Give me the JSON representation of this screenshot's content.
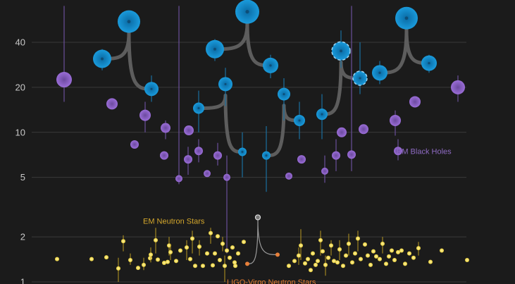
{
  "chart_data": {
    "type": "scatter",
    "scale": "log",
    "ylim": [
      1,
      70
    ],
    "yticks": [
      1,
      2,
      5,
      10,
      20,
      40
    ],
    "grid": true,
    "colors": {
      "ligo_bh": "#1a9bdc",
      "em_bh": "#9a6dd7",
      "em_ns": "#e8cf3a",
      "ligo_ns": "#e8803a",
      "merger_arc": "#5d5d5d",
      "grid": "#3a3a3a"
    },
    "annotations": [
      {
        "text": "EM Black Holes",
        "x": 563,
        "y": 7.5,
        "color": "#8f6bc4"
      },
      {
        "text": "EM Neutron Stars",
        "x": 203,
        "y": 2.55,
        "color": "#d4a72c"
      },
      {
        "text": "LIGO-Virgo Neutron Stars",
        "x": 322,
        "y": 1.0,
        "color": "#e07a2e"
      }
    ],
    "series": [
      {
        "key": "ligo_bh",
        "marker": "circle-with-center",
        "points": [
          {
            "x": 145,
            "y": 31,
            "r": 13,
            "err": [
              26,
              36
            ]
          },
          {
            "x": 215,
            "y": 19.5,
            "r": 10,
            "err": [
              16,
              24
            ]
          },
          {
            "x": 183,
            "y": 55,
            "r": 16
          },
          {
            "x": 282,
            "y": 14.5,
            "r": 8,
            "err": [
              10,
              19
            ]
          },
          {
            "x": 320,
            "y": 21,
            "r": 10,
            "err": [
              15,
              27
            ]
          },
          {
            "x": 344,
            "y": 7.4,
            "r": 6,
            "err": [
              5,
              10
            ]
          },
          {
            "x": 305,
            "y": 36,
            "r": 13,
            "err": [
              30,
              42
            ]
          },
          {
            "x": 384,
            "y": 28,
            "r": 11,
            "err": [
              23,
              33
            ]
          },
          {
            "x": 351,
            "y": 64,
            "r": 17
          },
          {
            "x": 378,
            "y": 7.0,
            "r": 6,
            "err": [
              4,
              11
            ]
          },
          {
            "x": 403,
            "y": 18,
            "r": 9,
            "err": [
              12,
              23
            ]
          },
          {
            "x": 425,
            "y": 12,
            "r": 8,
            "err": [
              9,
              16
            ]
          },
          {
            "x": 457,
            "y": 13.2,
            "r": 8,
            "err": [
              9,
              18
            ]
          },
          {
            "x": 484,
            "y": 35,
            "r": 13,
            "err": [
              27,
              48
            ],
            "dashed": true
          },
          {
            "x": 511,
            "y": 23,
            "r": 10,
            "err": [
              18,
              40
            ],
            "dashed": true
          },
          {
            "x": 539,
            "y": 25,
            "r": 11,
            "err": [
              21,
              30
            ]
          },
          {
            "x": 577,
            "y": 58,
            "r": 16
          },
          {
            "x": 609,
            "y": 29,
            "r": 11,
            "err": [
              25,
              33
            ]
          }
        ]
      },
      {
        "key": "em_bh",
        "points": [
          {
            "x": 91,
            "y": 22.5,
            "r": 11,
            "err": [
              16,
              70
            ]
          },
          {
            "x": 159,
            "y": 15.5,
            "r": 8
          },
          {
            "x": 206,
            "y": 13,
            "r": 8,
            "err": [
              10,
              16
            ]
          },
          {
            "x": 191,
            "y": 8.3,
            "r": 6
          },
          {
            "x": 235,
            "y": 10.7,
            "r": 7,
            "err": [
              9,
              12
            ]
          },
          {
            "x": 233,
            "y": 7.0,
            "r": 6
          },
          {
            "x": 254,
            "y": 4.9,
            "r": 5,
            "err": [
              4.5,
              70
            ]
          },
          {
            "x": 268,
            "y": 10.3,
            "r": 7
          },
          {
            "x": 267,
            "y": 6.6,
            "r": 6,
            "err": [
              5.2,
              8
            ]
          },
          {
            "x": 282,
            "y": 7.5,
            "r": 6,
            "err": [
              6.3,
              9
            ]
          },
          {
            "x": 294,
            "y": 5.3,
            "r": 5
          },
          {
            "x": 309,
            "y": 7.0,
            "r": 6,
            "err": [
              6,
              8.5
            ]
          },
          {
            "x": 322,
            "y": 5.0,
            "r": 5,
            "err": [
              1.55,
              7
            ]
          },
          {
            "x": 410,
            "y": 5.1,
            "r": 5
          },
          {
            "x": 428,
            "y": 6.6,
            "r": 6
          },
          {
            "x": 461,
            "y": 5.5,
            "r": 5,
            "err": [
              4.6,
              7
            ]
          },
          {
            "x": 477,
            "y": 7.0,
            "r": 6,
            "err": [
              5.5,
              9
            ]
          },
          {
            "x": 485,
            "y": 10.0,
            "r": 7
          },
          {
            "x": 499,
            "y": 7.1,
            "r": 6,
            "err": [
              5.5,
              70
            ]
          },
          {
            "x": 516,
            "y": 10.5,
            "r": 7
          },
          {
            "x": 561,
            "y": 12.0,
            "r": 8,
            "err": [
              9.5,
              14
            ]
          },
          {
            "x": 589,
            "y": 16.0,
            "r": 8
          },
          {
            "x": 650,
            "y": 20.0,
            "r": 10,
            "err": [
              16,
              24
            ]
          },
          {
            "x": 565,
            "y": 7.5,
            "r": 6,
            "err": [
              6.5,
              9
            ]
          }
        ]
      },
      {
        "key": "em_ns",
        "points": [
          {
            "x": 81,
            "y": 1.42
          },
          {
            "x": 130,
            "y": 1.42
          },
          {
            "x": 151,
            "y": 1.46
          },
          {
            "x": 168,
            "y": 1.23,
            "err": [
              1.0,
              1.45
            ]
          },
          {
            "x": 175,
            "y": 1.87,
            "err": [
              1.6,
              2.05
            ]
          },
          {
            "x": 185,
            "y": 1.4,
            "err": [
              1.3,
              1.55
            ]
          },
          {
            "x": 196,
            "y": 1.24
          },
          {
            "x": 204,
            "y": 1.3,
            "err": [
              1.2,
              1.45
            ]
          },
          {
            "x": 213,
            "y": 1.44
          },
          {
            "x": 214,
            "y": 1.52,
            "err": [
              1.35,
              1.7
            ]
          },
          {
            "x": 221,
            "y": 1.9,
            "err": [
              1.55,
              2.3
            ]
          },
          {
            "x": 224,
            "y": 1.41
          },
          {
            "x": 233,
            "y": 1.34
          },
          {
            "x": 238,
            "y": 1.36
          },
          {
            "x": 240,
            "y": 1.75,
            "err": [
              1.5,
              2.0
            ]
          },
          {
            "x": 242,
            "y": 1.58,
            "err": [
              1.4,
              1.8
            ]
          },
          {
            "x": 250,
            "y": 1.38
          },
          {
            "x": 256,
            "y": 1.62
          },
          {
            "x": 265,
            "y": 1.7,
            "err": [
              1.4,
              1.9
            ]
          },
          {
            "x": 270,
            "y": 1.42
          },
          {
            "x": 273,
            "y": 1.95,
            "err": [
              1.55,
              2.2
            ]
          },
          {
            "x": 277,
            "y": 1.28
          },
          {
            "x": 283,
            "y": 1.72,
            "err": [
              1.5,
              1.9
            ]
          },
          {
            "x": 288,
            "y": 1.28
          },
          {
            "x": 294,
            "y": 1.55
          },
          {
            "x": 299,
            "y": 2.12,
            "err": [
              1.8,
              2.3
            ]
          },
          {
            "x": 302,
            "y": 1.29
          },
          {
            "x": 305,
            "y": 1.55
          },
          {
            "x": 309,
            "y": 2.02
          },
          {
            "x": 312,
            "y": 1.4
          },
          {
            "x": 316,
            "y": 1.8,
            "err": [
              1.6,
              2.0
            ]
          },
          {
            "x": 319,
            "y": 1.28,
            "err": [
              1.0,
              1.5
            ]
          },
          {
            "x": 322,
            "y": 1.62
          },
          {
            "x": 326,
            "y": 1.45
          },
          {
            "x": 330,
            "y": 1.7
          },
          {
            "x": 334,
            "y": 1.28
          },
          {
            "x": 410,
            "y": 1.28
          },
          {
            "x": 418,
            "y": 1.38
          },
          {
            "x": 424,
            "y": 1.5,
            "err": [
              1.3,
              1.7
            ]
          },
          {
            "x": 427,
            "y": 1.75,
            "err": [
              1.4,
              2.25
            ]
          },
          {
            "x": 433,
            "y": 1.33
          },
          {
            "x": 437,
            "y": 1.42
          },
          {
            "x": 441,
            "y": 1.2
          },
          {
            "x": 444,
            "y": 1.55
          },
          {
            "x": 448,
            "y": 1.3
          },
          {
            "x": 451,
            "y": 1.38
          },
          {
            "x": 455,
            "y": 1.9,
            "err": [
              1.5,
              2.2
            ]
          },
          {
            "x": 458,
            "y": 1.6
          },
          {
            "x": 462,
            "y": 1.3,
            "err": [
              1.1,
              1.5
            ]
          },
          {
            "x": 466,
            "y": 1.45
          },
          {
            "x": 470,
            "y": 1.75,
            "err": [
              1.5,
              1.9
            ]
          },
          {
            "x": 474,
            "y": 1.38
          },
          {
            "x": 479,
            "y": 1.35
          },
          {
            "x": 482,
            "y": 1.65,
            "err": [
              1.4,
              1.9
            ]
          },
          {
            "x": 487,
            "y": 1.28
          },
          {
            "x": 491,
            "y": 1.5
          },
          {
            "x": 495,
            "y": 1.8,
            "err": [
              1.5,
              2.1
            ]
          },
          {
            "x": 500,
            "y": 1.35
          },
          {
            "x": 504,
            "y": 1.55
          },
          {
            "x": 508,
            "y": 1.95,
            "err": [
              1.6,
              2.2
            ]
          },
          {
            "x": 512,
            "y": 1.42
          },
          {
            "x": 518,
            "y": 1.78
          },
          {
            "x": 522,
            "y": 1.5
          },
          {
            "x": 526,
            "y": 1.3
          },
          {
            "x": 530,
            "y": 1.6
          },
          {
            "x": 534,
            "y": 1.48
          },
          {
            "x": 539,
            "y": 1.42
          },
          {
            "x": 543,
            "y": 1.8,
            "err": [
              1.55,
              2.0
            ]
          },
          {
            "x": 548,
            "y": 1.32
          },
          {
            "x": 552,
            "y": 1.48
          },
          {
            "x": 556,
            "y": 1.62
          },
          {
            "x": 560,
            "y": 1.4
          },
          {
            "x": 565,
            "y": 1.58
          },
          {
            "x": 570,
            "y": 1.62
          },
          {
            "x": 575,
            "y": 1.32
          },
          {
            "x": 581,
            "y": 1.55
          },
          {
            "x": 587,
            "y": 1.45
          },
          {
            "x": 594,
            "y": 1.68,
            "err": [
              1.5,
              1.85
            ]
          },
          {
            "x": 611,
            "y": 1.36
          },
          {
            "x": 627,
            "y": 1.62
          },
          {
            "x": 663,
            "y": 1.4
          },
          {
            "x": 333,
            "y": 1.35
          },
          {
            "x": 338,
            "y": 1.55
          },
          {
            "x": 346,
            "y": 1.85
          }
        ]
      },
      {
        "key": "ligo_ns",
        "points": [
          {
            "x": 351,
            "y": 1.32,
            "r": 3
          },
          {
            "x": 394,
            "y": 1.52,
            "r": 3
          }
        ]
      }
    ],
    "mergers": [
      {
        "a": [
          145,
          31
        ],
        "b": [
          215,
          19.5
        ],
        "rem": [
          183,
          55
        ]
      },
      {
        "a": [
          282,
          14.5
        ],
        "b": [
          344,
          7.4
        ],
        "rem": [
          320,
          21
        ]
      },
      {
        "a": [
          305,
          36
        ],
        "b": [
          384,
          28
        ],
        "rem": [
          351,
          64
        ]
      },
      {
        "a": [
          378,
          7.0
        ],
        "b": [
          425,
          12
        ],
        "rem": [
          403,
          18
        ]
      },
      {
        "a": [
          457,
          13.2
        ],
        "b": [
          511,
          23
        ],
        "rem": [
          484,
          35
        ]
      },
      {
        "a": [
          539,
          25
        ],
        "b": [
          609,
          29
        ],
        "rem": [
          577,
          58
        ]
      },
      {
        "a": [
          351,
          1.32
        ],
        "b": [
          394,
          1.52
        ],
        "rem": [
          366,
          2.7
        ],
        "thin": true
      }
    ]
  }
}
